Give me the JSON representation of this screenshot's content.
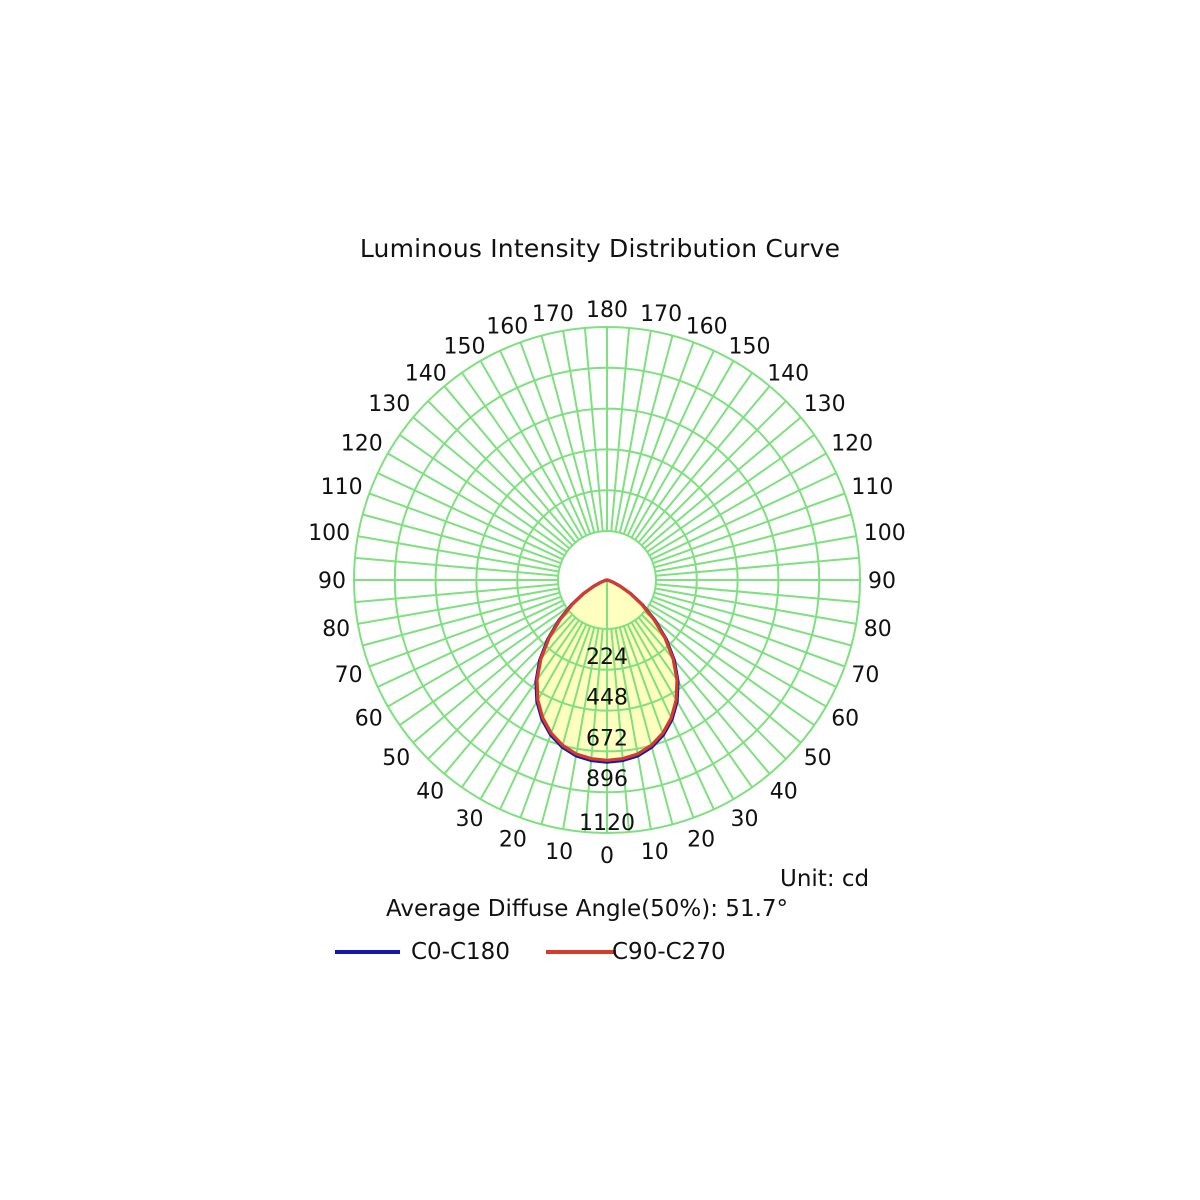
{
  "title": "Luminous Intensity Distribution Curve",
  "unit_label": "Unit: cd",
  "average_angle_label": "Average Diffuse Angle(50%): 51.7°",
  "colors": {
    "grid": "#7fe07f",
    "fill": "#ffffc0",
    "c0_c180": "#1515b0",
    "c90_c270": "#d83a2a"
  },
  "chart_data": {
    "type": "polar",
    "title": "Luminous Intensity Distribution Curve",
    "unit": "cd",
    "radial_ticks": [
      224,
      448,
      672,
      896,
      1120
    ],
    "radial_max": 1120,
    "angle_tick_labels": [
      "0",
      "10",
      "20",
      "30",
      "40",
      "50",
      "60",
      "70",
      "80",
      "90",
      "100",
      "110",
      "120",
      "130",
      "140",
      "150",
      "160",
      "170",
      "180"
    ],
    "angle_step_deg": 10,
    "angle_unit": "deg",
    "series": [
      {
        "name": "C0-C180",
        "color": "#1515b0",
        "angles": [
          0,
          5,
          10,
          15,
          20,
          25,
          30,
          35,
          40,
          45,
          50,
          55,
          60,
          65,
          70,
          75,
          80,
          85,
          90
        ],
        "values": [
          1000,
          995,
          980,
          950,
          905,
          845,
          770,
          680,
          575,
          460,
          345,
          240,
          150,
          80,
          35,
          12,
          4,
          1,
          0
        ]
      },
      {
        "name": "C90-C270",
        "color": "#d83a2a",
        "angles": [
          0,
          5,
          10,
          15,
          20,
          25,
          30,
          35,
          40,
          45,
          50,
          55,
          60,
          65,
          70,
          75,
          80,
          85,
          90
        ],
        "values": [
          990,
          985,
          970,
          940,
          895,
          835,
          760,
          670,
          565,
          450,
          335,
          232,
          145,
          78,
          34,
          12,
          4,
          1,
          0
        ]
      }
    ],
    "legend": [
      "C0-C180",
      "C90-C270"
    ],
    "legend_position": "bottom",
    "grid": true
  }
}
